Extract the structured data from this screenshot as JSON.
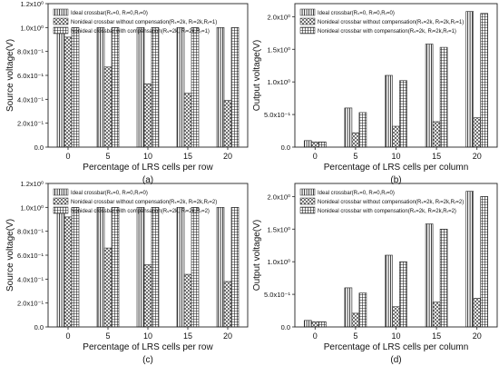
{
  "chart_data": [
    {
      "type": "bar",
      "panel_label": "(a)",
      "xlabel": "Percentage of LRS cells per row",
      "ylabel": "Source voltage(V)",
      "categories": [
        "0",
        "5",
        "10",
        "15",
        "20"
      ],
      "ylim": [
        0,
        1.2
      ],
      "yticks": [
        0.0,
        0.2,
        0.4,
        0.6,
        0.8,
        1.0,
        1.2
      ],
      "ytick_labels": [
        "0.0",
        "2.0x10⁻¹",
        "4.0x10⁻¹",
        "6.0x10⁻¹",
        "8.0x10⁻¹",
        "1.0x10⁰",
        "1.2x10⁰"
      ],
      "legend": "top-left",
      "series": [
        {
          "name": "Ideal crossbar(Rₛ=0, Rₗ=0,Rᵣ=0)",
          "pattern": "vertical-lines",
          "values": [
            1.0,
            1.0,
            1.0,
            1.0,
            1.0
          ]
        },
        {
          "name": "Nonideal crossbar without compensation(Rₛ=2k, Rₗ=2k,Rᵣ=1)",
          "pattern": "crosshatch",
          "values": [
            0.92,
            0.67,
            0.53,
            0.45,
            0.39
          ]
        },
        {
          "name": "Nonideal crossbar with compensation(Rₛ=2k, Rₗ=2k,Rᵣ=1)",
          "pattern": "grid",
          "values": [
            1.0,
            1.0,
            1.0,
            1.0,
            1.0
          ]
        }
      ]
    },
    {
      "type": "bar",
      "panel_label": "(b)",
      "xlabel": "Percentage of LRS cells per column",
      "ylabel": "Output voltage(V)",
      "categories": [
        "0",
        "5",
        "10",
        "15",
        "20"
      ],
      "ylim": [
        0,
        2.2
      ],
      "yticks": [
        0.0,
        0.5,
        1.0,
        1.5,
        2.0
      ],
      "ytick_labels": [
        "0.0",
        "5.0x10⁻¹",
        "1.0x10⁰",
        "1.5x10⁰",
        "2.0x10⁰"
      ],
      "legend": "top-left",
      "series": [
        {
          "name": "Ideal crossbar(Rₛ=0, Rₗ=0,Rᵣ=0)",
          "pattern": "vertical-lines",
          "values": [
            0.1,
            0.6,
            1.1,
            1.58,
            2.08
          ]
        },
        {
          "name": "Nonideal crossbar without compensation(Rₛ=2k, Rₗ=2k,Rᵣ=1)",
          "pattern": "crosshatch",
          "values": [
            0.08,
            0.22,
            0.32,
            0.39,
            0.45
          ]
        },
        {
          "name": "Nonideal crossbar with compensation(Rₛ=2k, Rₗ=2k,Rᵣ=1)",
          "pattern": "grid",
          "values": [
            0.08,
            0.53,
            1.02,
            1.53,
            2.05
          ]
        }
      ]
    },
    {
      "type": "bar",
      "panel_label": "(c)",
      "xlabel": "Percentage of LRS cells per row",
      "ylabel": "Source voltage(V)",
      "categories": [
        "0",
        "5",
        "10",
        "15",
        "20"
      ],
      "ylim": [
        0,
        1.2
      ],
      "yticks": [
        0.0,
        0.2,
        0.4,
        0.6,
        0.8,
        1.0,
        1.2
      ],
      "ytick_labels": [
        "0.0",
        "2.0x10⁻¹",
        "4.0x10⁻¹",
        "6.0x10⁻¹",
        "8.0x10⁻¹",
        "1.0x10⁰",
        "1.2x10⁰"
      ],
      "legend": "top-left",
      "series": [
        {
          "name": "Ideal crossbar(Rₛ=0, Rₗ=0,Rᵣ=0)",
          "pattern": "vertical-lines",
          "values": [
            1.0,
            1.0,
            1.0,
            1.0,
            1.0
          ]
        },
        {
          "name": "Nonideal crossbar without compensation(Rₛ=2k, Rₗ=2k,Rᵣ=2)",
          "pattern": "crosshatch",
          "values": [
            0.92,
            0.66,
            0.52,
            0.44,
            0.38
          ]
        },
        {
          "name": "Nonideal crossbar with compensation(Rₛ=2k, Rₗ=2k,Rᵣ=2)",
          "pattern": "grid",
          "values": [
            1.0,
            1.0,
            1.0,
            1.0,
            1.0
          ]
        }
      ]
    },
    {
      "type": "bar",
      "panel_label": "(d)",
      "xlabel": "Percentage of LRS cells per column",
      "ylabel": "Output voltage(V)",
      "categories": [
        "0",
        "5",
        "10",
        "15",
        "20"
      ],
      "ylim": [
        0,
        2.2
      ],
      "yticks": [
        0.0,
        0.5,
        1.0,
        1.5,
        2.0
      ],
      "ytick_labels": [
        "0.0",
        "5.0x10⁻¹",
        "1.0x10⁰",
        "1.5x10⁰",
        "2.0x10⁰"
      ],
      "legend": "top-left",
      "series": [
        {
          "name": "Ideal crossbar(Rₛ=0, Rₗ=0,Rᵣ=0)",
          "pattern": "vertical-lines",
          "values": [
            0.1,
            0.6,
            1.1,
            1.58,
            2.08
          ]
        },
        {
          "name": "Nonideal crossbar without compensation(Rₛ=2k, Rₗ=2k,Rᵣ=2)",
          "pattern": "crosshatch",
          "values": [
            0.08,
            0.21,
            0.31,
            0.38,
            0.44
          ]
        },
        {
          "name": "Nonideal crossbar with compensation(Rₛ=2k, Rₗ=2k,Rᵣ=2)",
          "pattern": "grid",
          "values": [
            0.08,
            0.52,
            1.0,
            1.5,
            2.0
          ]
        }
      ]
    }
  ]
}
